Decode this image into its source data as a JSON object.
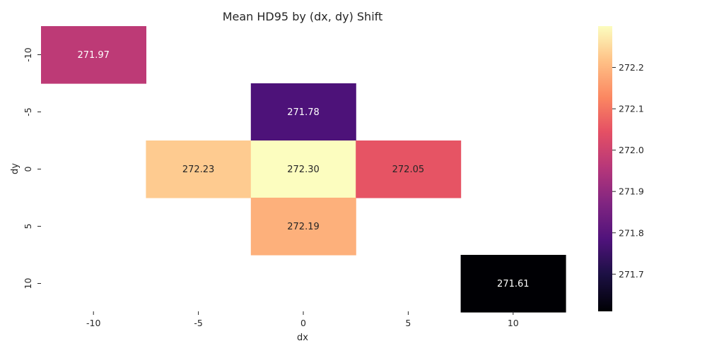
{
  "chart_data": {
    "type": "heatmap",
    "title": "Mean HD95 by (dx, dy) Shift",
    "xlabel": "dx",
    "ylabel": "dy",
    "x_categories": [
      "-10",
      "-5",
      "0",
      "5",
      "10"
    ],
    "y_categories": [
      "-10",
      "-5",
      "0",
      "5",
      "10"
    ],
    "cells": [
      {
        "dx": "-10",
        "dy": "-10",
        "value": 271.97,
        "label": "271.97"
      },
      {
        "dx": "0",
        "dy": "-5",
        "value": 271.78,
        "label": "271.78"
      },
      {
        "dx": "-5",
        "dy": "0",
        "value": 272.23,
        "label": "272.23"
      },
      {
        "dx": "0",
        "dy": "0",
        "value": 272.3,
        "label": "272.30"
      },
      {
        "dx": "5",
        "dy": "0",
        "value": 272.05,
        "label": "272.05"
      },
      {
        "dx": "0",
        "dy": "5",
        "value": 272.19,
        "label": "272.19"
      },
      {
        "dx": "10",
        "dy": "10",
        "value": 271.61,
        "label": "271.61"
      }
    ],
    "colormap": "magma",
    "colorbar": {
      "range": [
        271.61,
        272.3
      ],
      "ticks": [
        "271.7",
        "271.8",
        "271.9",
        "272.0",
        "272.1",
        "272.2"
      ],
      "tick_values": [
        271.7,
        271.8,
        271.9,
        272.0,
        272.1,
        272.2
      ]
    },
    "missing_cells_blank": true,
    "grid": false
  },
  "colors": {
    "text_dark": "#262626",
    "text_light": "#ffffff",
    "axis": "#262626"
  }
}
